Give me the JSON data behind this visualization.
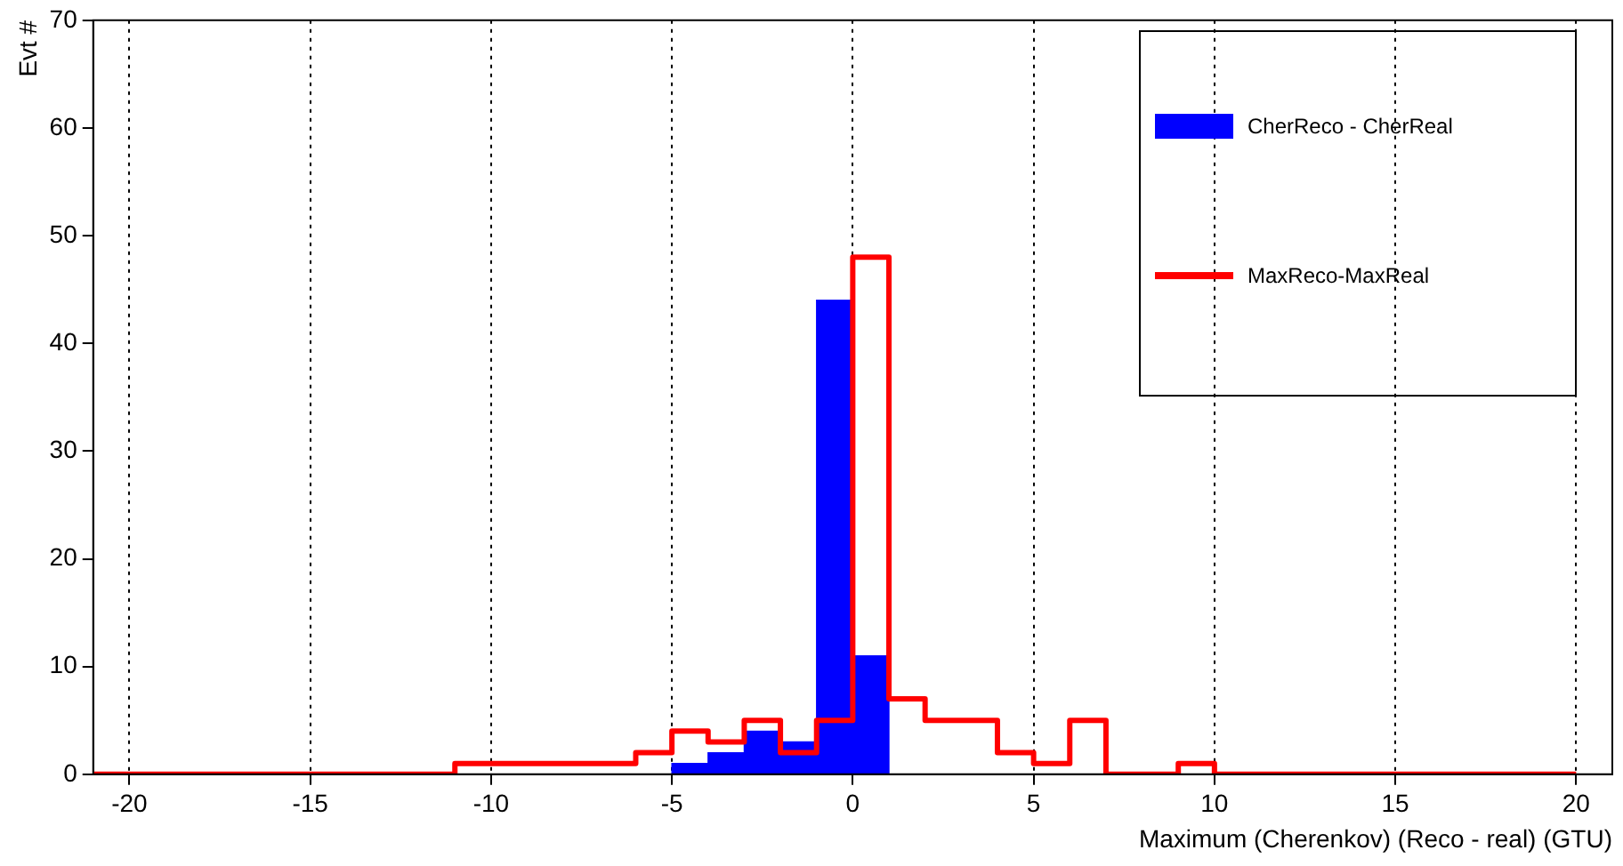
{
  "chart_data": {
    "type": "histogram",
    "xlabel": "Maximum (Cherenkov) (Reco - real) (GTU)",
    "ylabel": "Evt #",
    "bins": [
      -21,
      -20,
      -19,
      -18,
      -17,
      -16,
      -15,
      -14,
      -13,
      -12,
      -11,
      -10,
      -9,
      -8,
      -7,
      -6,
      -5,
      -4,
      -3,
      -2,
      -1,
      0,
      1,
      2,
      3,
      4,
      5,
      6,
      7,
      8,
      9,
      10,
      11,
      12,
      13,
      14,
      15,
      16,
      17,
      18,
      19,
      20,
      21
    ],
    "series": [
      {
        "name": "CherReco - CherReal",
        "color": "#0000ff",
        "values": [
          0,
          0,
          0,
          0,
          0,
          0,
          0,
          0,
          0,
          0,
          0,
          0,
          0,
          0,
          0,
          0,
          1,
          2,
          4,
          3,
          44,
          11,
          0,
          0,
          0,
          0,
          0,
          0,
          0,
          0,
          0,
          0,
          0,
          0,
          0,
          0,
          0,
          0,
          0,
          0,
          0,
          0
        ]
      },
      {
        "name": "MaxReco-MaxReal",
        "color": "#ff0000",
        "type": "step",
        "x": [
          -21,
          -20,
          -19,
          -18,
          -17,
          -16,
          -15,
          -14,
          -13,
          -12,
          -11,
          -10,
          -9,
          -8,
          -7,
          -6,
          -5,
          -4,
          -3,
          -2,
          -1,
          0,
          1,
          2,
          3,
          4,
          5,
          6,
          7,
          8,
          9,
          10,
          11,
          12,
          13,
          14,
          15,
          16,
          17,
          18,
          19,
          20
        ],
        "values": [
          0,
          0,
          0,
          0,
          0,
          0,
          0,
          0,
          0,
          0,
          1,
          1,
          1,
          1,
          1,
          2,
          4,
          3,
          5,
          2,
          5,
          48,
          7,
          5,
          5,
          2,
          1,
          5,
          0,
          0,
          1,
          0,
          0,
          0,
          0,
          0,
          0,
          0,
          0,
          0,
          0,
          0
        ]
      }
    ],
    "xlim": [
      -21,
      21
    ],
    "xticks": [
      -20,
      -15,
      -10,
      -5,
      0,
      5,
      10,
      15,
      20
    ],
    "ylim": [
      0,
      70
    ],
    "yticks": [
      0,
      10,
      20,
      30,
      40,
      50,
      60,
      70
    ],
    "grid": "x",
    "legend": "top right"
  }
}
